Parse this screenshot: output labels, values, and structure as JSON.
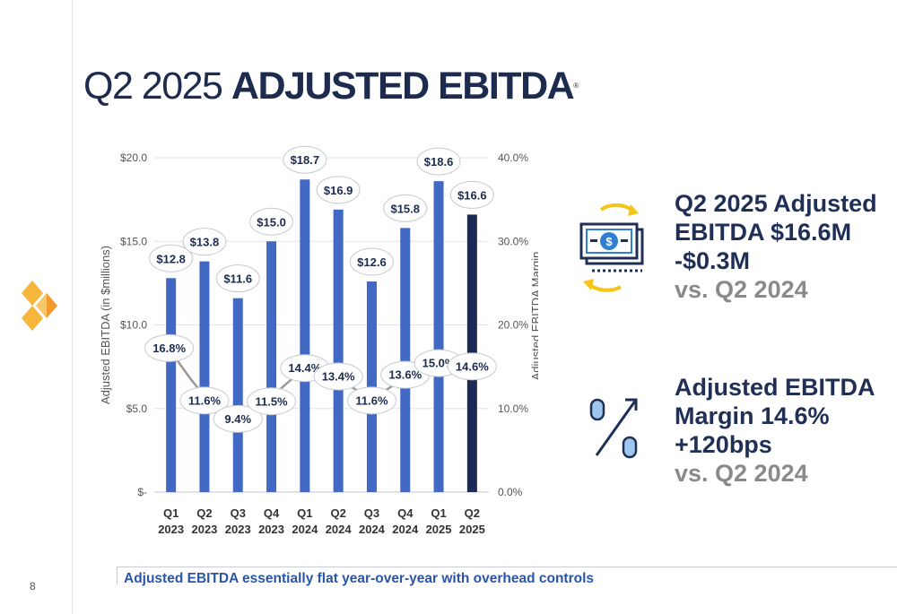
{
  "slide": {
    "title_light": "Q2 2025",
    "title_bold": "ADJUSTED EBITDA",
    "title_mark": "®",
    "page_number": "8",
    "footer": "Adjusted EBITDA essentially flat year-over-year with overhead controls"
  },
  "callouts": {
    "ebitda": {
      "line1": "Q2 2025 Adjusted",
      "line2": "EBITDA $16.6M",
      "line3": "-$0.3M",
      "line4": "vs. Q2 2024",
      "icon": "money-exchange-icon"
    },
    "margin": {
      "line1": "Adjusted EBITDA",
      "line2": "Margin 14.6%",
      "line3": "+120bps",
      "line4": "vs. Q2 2024",
      "icon": "percent-increase-icon"
    }
  },
  "colors": {
    "title": "#1c2b4e",
    "bar": "#4169c4",
    "bar_highlight": "#1a2a54",
    "margin_line": "#9a9a9a",
    "footer": "#2a55a7",
    "callout_sub": "#8a8a8a"
  },
  "chart_data": {
    "type": "bar",
    "categories": [
      [
        "Q1",
        "2023"
      ],
      [
        "Q2",
        "2023"
      ],
      [
        "Q3",
        "2023"
      ],
      [
        "Q4",
        "2023"
      ],
      [
        "Q1",
        "2024"
      ],
      [
        "Q2",
        "2024"
      ],
      [
        "Q3",
        "2024"
      ],
      [
        "Q4",
        "2024"
      ],
      [
        "Q1",
        "2025"
      ],
      [
        "Q2",
        "2025"
      ]
    ],
    "series": [
      {
        "axis": "left",
        "type": "bar",
        "values": [
          12.8,
          13.8,
          11.6,
          15.0,
          18.7,
          16.9,
          12.6,
          15.8,
          18.6,
          16.6
        ],
        "labels": [
          "$12.8",
          "$13.8",
          "$11.6",
          "$15.0",
          "$18.7",
          "$16.9",
          "$12.6",
          "$15.8",
          "$18.6",
          "$16.6"
        ],
        "highlight_index": 9
      },
      {
        "axis": "right",
        "type": "line",
        "values": [
          16.8,
          11.6,
          9.4,
          11.5,
          14.4,
          13.4,
          11.6,
          13.6,
          15.0,
          14.6
        ],
        "labels": [
          "16.8%",
          "11.6%",
          "9.4%",
          "11.5%",
          "14.4%",
          "13.4%",
          "11.6%",
          "13.6%",
          "15.0%",
          "14.6%"
        ]
      }
    ],
    "ylabel": "Adjusted EBITDA (in $millions)",
    "ylabel_right": "Adjusted EBITDA Margin",
    "ylim": [
      0,
      20
    ],
    "ylim_right": [
      0,
      40
    ],
    "yticks": [
      0,
      5,
      10,
      15,
      20
    ],
    "ytick_labels": [
      "$-",
      "$5.0",
      "$10.0",
      "$15.0",
      "$20.0"
    ],
    "yticks_right": [
      0,
      10,
      20,
      30,
      40
    ],
    "ytick_labels_right": [
      "0.0%",
      "10.0%",
      "20.0%",
      "30.0%",
      "40.0%"
    ],
    "grid": true,
    "legend": "none"
  }
}
